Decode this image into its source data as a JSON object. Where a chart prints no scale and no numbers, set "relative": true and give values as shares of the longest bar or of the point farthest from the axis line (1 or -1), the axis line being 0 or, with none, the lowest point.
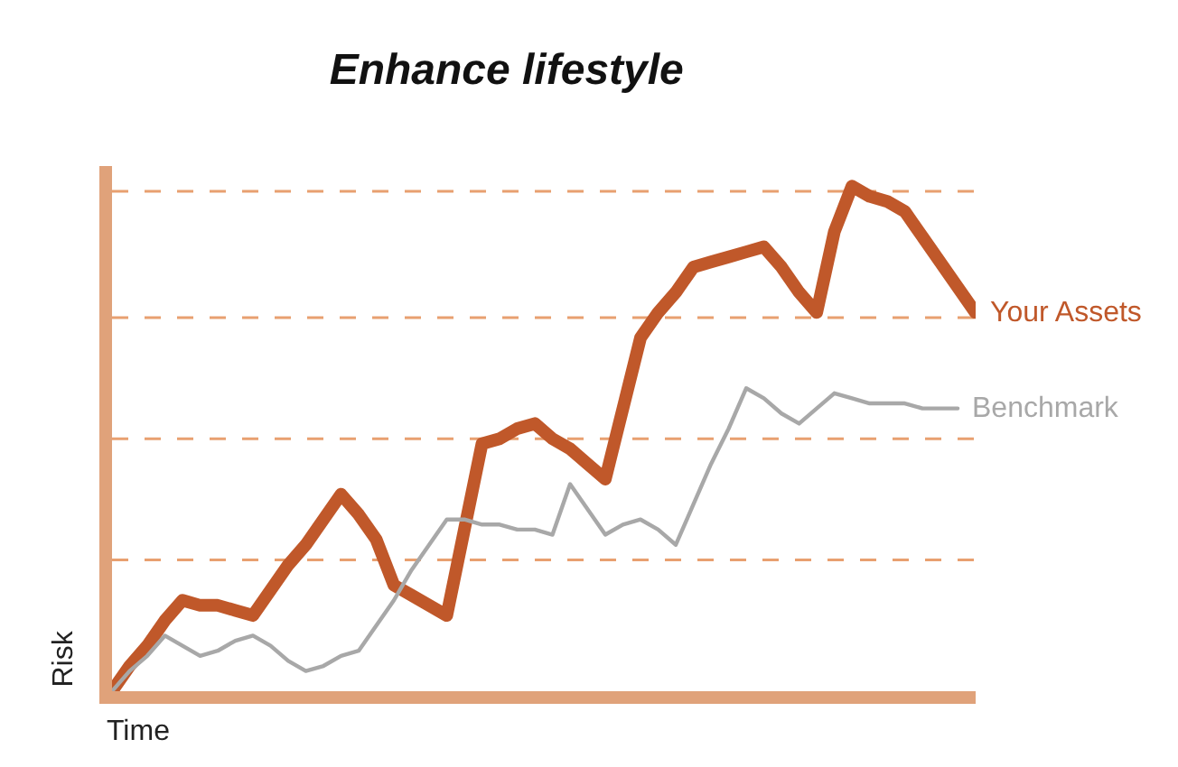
{
  "chart_data": {
    "type": "line",
    "title": "Enhance lifestyle",
    "xlabel": "Time",
    "ylabel": "Risk",
    "relative": true,
    "marker": "none",
    "line_style": "solid",
    "categories": [
      null,
      null,
      null,
      null,
      null,
      null,
      null,
      null,
      null,
      null,
      null,
      null,
      null,
      null,
      null,
      null,
      null,
      null,
      null,
      null,
      null,
      null,
      null,
      null,
      null,
      null,
      null,
      null,
      null,
      null,
      null,
      null,
      null,
      null,
      null,
      null,
      null,
      null,
      null,
      null,
      null,
      null,
      null,
      null,
      null,
      null,
      null,
      null,
      null,
      null
    ],
    "series": [
      {
        "name": "Your Assets",
        "color": "#c0582a",
        "values": [
          0,
          0.05,
          0.09,
          0.14,
          0.18,
          0.17,
          0.17,
          0.16,
          0.15,
          0.2,
          0.25,
          0.29,
          0.34,
          0.39,
          0.35,
          0.3,
          0.21,
          0.19,
          0.17,
          0.15,
          0.32,
          0.49,
          0.5,
          0.52,
          0.53,
          0.5,
          0.48,
          0.45,
          0.42,
          0.56,
          0.7,
          0.75,
          0.79,
          0.84,
          0.85,
          0.86,
          0.87,
          0.88,
          0.84,
          0.79,
          0.75,
          0.91,
          1.0,
          0.98,
          0.97,
          0.95,
          0.9,
          0.85,
          0.8,
          0.75
        ]
      },
      {
        "name": "Benchmark",
        "color": "#a8a8a8",
        "values": [
          0,
          0.04,
          0.07,
          0.11,
          0.09,
          0.07,
          0.08,
          0.1,
          0.11,
          0.09,
          0.06,
          0.04,
          0.05,
          0.07,
          0.08,
          0.13,
          0.18,
          0.24,
          0.29,
          0.34,
          0.34,
          0.33,
          0.33,
          0.32,
          0.32,
          0.31,
          0.41,
          0.36,
          0.31,
          0.33,
          0.34,
          0.32,
          0.29,
          0.37,
          0.45,
          0.52,
          0.6,
          0.58,
          0.55,
          0.53,
          0.56,
          0.59,
          0.58,
          0.57,
          0.57,
          0.57,
          0.56,
          0.56,
          0.56,
          null
        ]
      }
    ],
    "ref_lines": [
      {
        "axis": "y",
        "value": 0.26,
        "color": "#e8a070",
        "line_style": "dashed"
      },
      {
        "axis": "y",
        "value": 0.5,
        "color": "#e8a070",
        "line_style": "dashed"
      },
      {
        "axis": "y",
        "value": 0.74,
        "color": "#e8a070",
        "line_style": "dashed"
      },
      {
        "axis": "y",
        "value": 0.99,
        "color": "#e8a070",
        "line_style": "dashed"
      }
    ]
  }
}
